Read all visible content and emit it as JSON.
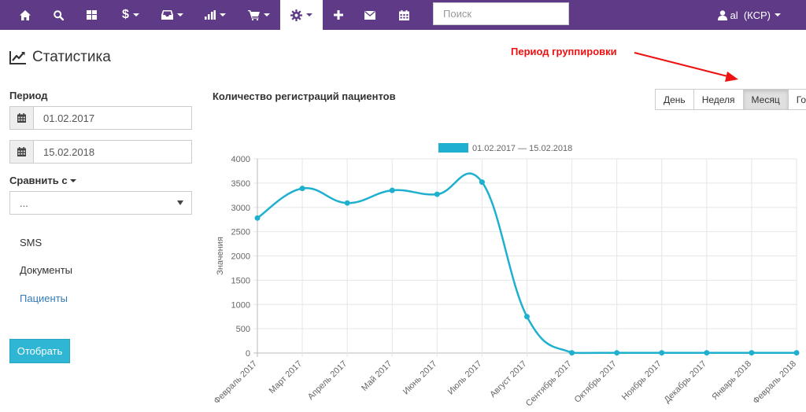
{
  "navbar": {
    "bg_color": "#5f3a87",
    "items": [
      {
        "icon": "home-icon"
      },
      {
        "icon": "search-icon"
      },
      {
        "icon": "grid-icon"
      },
      {
        "icon": "dollar-icon",
        "label": "$",
        "dropdown": true
      },
      {
        "icon": "inbox-icon",
        "dropdown": true
      },
      {
        "icon": "bar-chart-icon",
        "dropdown": true
      },
      {
        "icon": "cart-icon",
        "dropdown": true
      },
      {
        "icon": "gear-icon",
        "dropdown": true,
        "active": true
      },
      {
        "icon": "plus-icon"
      },
      {
        "icon": "envelope-icon"
      },
      {
        "icon": "calendar-icon"
      }
    ],
    "search_placeholder": "Поиск",
    "user_label": "al  (КСР)"
  },
  "page": {
    "title": "Статистика"
  },
  "sidebar": {
    "period_label": "Период",
    "date_from": "01.02.2017",
    "date_to": "15.02.2018",
    "compare_label": "Сравнить с",
    "compare_value": "...",
    "links": [
      {
        "label": "SMS",
        "active": false
      },
      {
        "label": "Документы",
        "active": false
      },
      {
        "label": "Пациенты",
        "active": true
      }
    ],
    "submit_label": "Отобрать",
    "accent_color": "#2fb6d5"
  },
  "main": {
    "chart_heading": "Количество регистраций пациентов",
    "period_buttons": [
      {
        "label": "День",
        "active": false
      },
      {
        "label": "Неделя",
        "active": false
      },
      {
        "label": "Месяц",
        "active": true
      },
      {
        "label": "Год",
        "active": false
      }
    ],
    "annotation": "Период группировки",
    "annotation_color": "#ee1111"
  },
  "chart_data": {
    "type": "line",
    "title": "",
    "legend_position": "top",
    "ylabel": "Значения",
    "xlabel": "",
    "ylim": [
      0,
      4000
    ],
    "yticks": [
      0,
      500,
      1000,
      1500,
      2000,
      2500,
      3000,
      3500,
      4000
    ],
    "grid": true,
    "categories": [
      "Февраль 2017",
      "Март 2017",
      "Апрель 2017",
      "Май 2017",
      "Июнь 2017",
      "Июль 2017",
      "Август 2017",
      "Сентябрь 2017",
      "Октябрь 2017",
      "Ноябрь 2017",
      "Декабрь 2017",
      "Январь 2018",
      "Февраль 2018"
    ],
    "series": [
      {
        "name": "01.02.2017 — 15.02.2018",
        "color": "#1fb0d0",
        "values": [
          2780,
          3390,
          3090,
          3350,
          3270,
          3520,
          750,
          5,
          5,
          5,
          5,
          5,
          5
        ]
      }
    ]
  }
}
